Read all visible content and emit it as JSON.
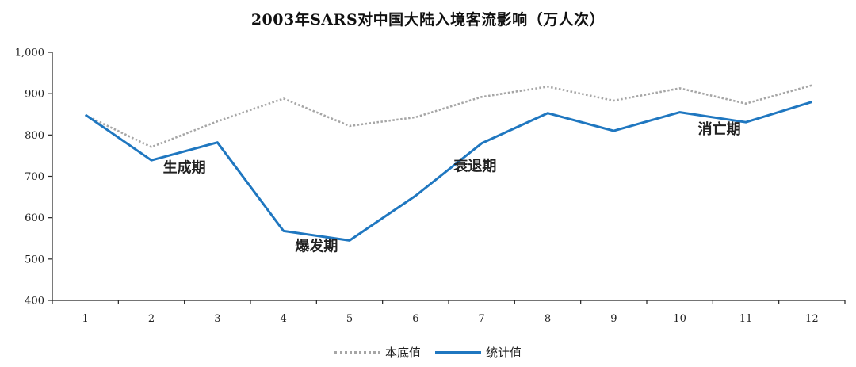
{
  "chart_data": {
    "type": "line",
    "title": "2003年SARS对中国大陆入境客流影响（万人次）",
    "categories": [
      "1",
      "2",
      "3",
      "4",
      "5",
      "6",
      "7",
      "8",
      "9",
      "10",
      "11",
      "12"
    ],
    "ylim": [
      400,
      1000
    ],
    "yticks": [
      400,
      500,
      600,
      700,
      800,
      900,
      1000
    ],
    "ytick_labels": [
      "400",
      "500",
      "600",
      "700",
      "800",
      "900",
      "1,000"
    ],
    "grid": false,
    "legend_position": "bottom-center",
    "series": [
      {
        "name": "本底值",
        "style": "dotted",
        "color": "#a6a6a6",
        "values": [
          848,
          771,
          833,
          888,
          822,
          843,
          892,
          917,
          883,
          913,
          876,
          920
        ]
      },
      {
        "name": "统计值",
        "style": "solid",
        "color": "#1f77c0",
        "values": [
          849,
          739,
          782,
          568,
          545,
          653,
          780,
          853,
          810,
          855,
          831,
          880
        ]
      }
    ],
    "annotations": [
      {
        "text": "生成期",
        "x": 2.5,
        "y": 710
      },
      {
        "text": "爆发期",
        "x": 4.5,
        "y": 520
      },
      {
        "text": "衰退期",
        "x": 6.9,
        "y": 713
      },
      {
        "text": "消亡期",
        "x": 10.6,
        "y": 803
      }
    ]
  }
}
